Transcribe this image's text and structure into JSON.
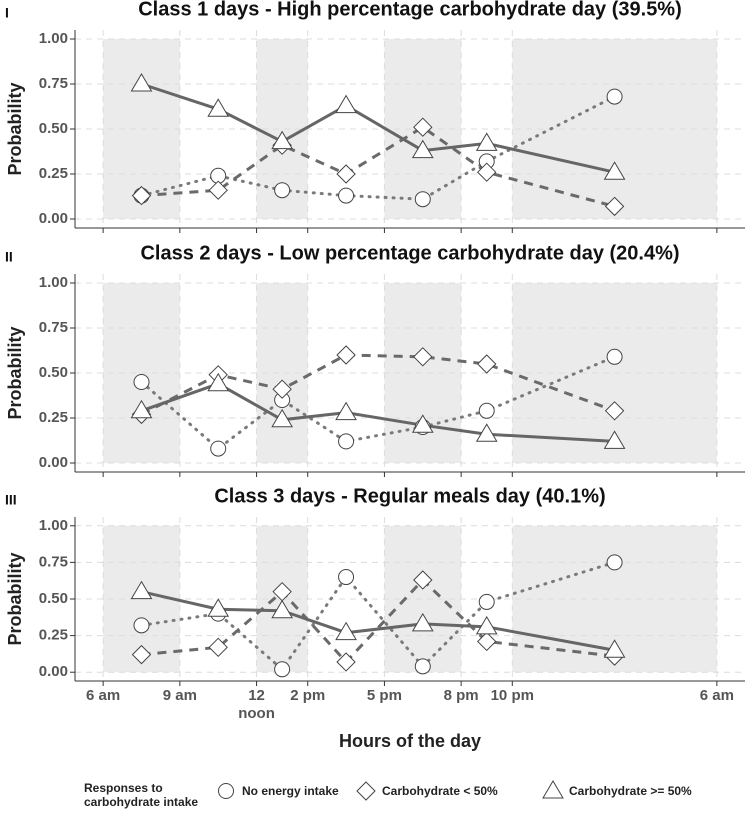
{
  "chart_data": [
    {
      "type": "line",
      "panel_label": "I",
      "title": "Class 1 days - High percentage carbohydrate day (39.5%)",
      "y_label": "Probability",
      "x": [
        7.5,
        10.5,
        13,
        15.5,
        18.5,
        21,
        26
      ],
      "series": [
        {
          "name": "No energy intake",
          "marker": "circle",
          "dash": "dotted",
          "color": "#7a7a7a",
          "values": [
            0.13,
            0.24,
            0.16,
            0.13,
            0.11,
            0.32,
            0.68
          ]
        },
        {
          "name": "Carbohydrate < 50%",
          "marker": "diamond",
          "dash": "dashed",
          "color": "#6a6a6a",
          "values": [
            0.13,
            0.16,
            0.41,
            0.25,
            0.51,
            0.26,
            0.07
          ]
        },
        {
          "name": "Carbohydrate >= 50%",
          "marker": "triangle",
          "dash": "solid",
          "color": "#666666",
          "values": [
            0.75,
            0.61,
            0.43,
            0.63,
            0.38,
            0.42,
            0.26
          ]
        }
      ],
      "shaded": [
        [
          6,
          9
        ],
        [
          12,
          14
        ],
        [
          17,
          20
        ],
        [
          22,
          30
        ]
      ],
      "xlim": [
        4.9,
        31.1
      ],
      "ylim": [
        -0.05,
        1.05
      ],
      "yticks": [
        {
          "value": 0,
          "label": "0.00"
        },
        {
          "value": 0.25,
          "label": "0.25"
        },
        {
          "value": 0.5,
          "label": "0.50"
        },
        {
          "value": 0.75,
          "label": "0.75"
        },
        {
          "value": 1,
          "label": "1.00"
        }
      ],
      "grid": true
    },
    {
      "type": "line",
      "panel_label": "II",
      "title": "Class 2 days - Low percentage carbohydrate day (20.4%)",
      "y_label": "Probability",
      "x": [
        7.5,
        10.5,
        13,
        15.5,
        18.5,
        21,
        26
      ],
      "series": [
        {
          "name": "No energy intake",
          "marker": "circle",
          "dash": "dotted",
          "color": "#7a7a7a",
          "values": [
            0.45,
            0.08,
            0.35,
            0.12,
            0.2,
            0.29,
            0.59
          ]
        },
        {
          "name": "Carbohydrate < 50%",
          "marker": "diamond",
          "dash": "dashed",
          "color": "#6a6a6a",
          "values": [
            0.27,
            0.49,
            0.41,
            0.6,
            0.59,
            0.55,
            0.29
          ]
        },
        {
          "name": "Carbohydrate >= 50%",
          "marker": "triangle",
          "dash": "solid",
          "color": "#666666",
          "values": [
            0.29,
            0.44,
            0.24,
            0.28,
            0.21,
            0.16,
            0.12
          ]
        }
      ],
      "shaded": [
        [
          6,
          9
        ],
        [
          12,
          14
        ],
        [
          17,
          20
        ],
        [
          22,
          30
        ]
      ],
      "xlim": [
        4.9,
        31.1
      ],
      "ylim": [
        -0.05,
        1.05
      ],
      "yticks": [
        {
          "value": 0,
          "label": "0.00"
        },
        {
          "value": 0.25,
          "label": "0.25"
        },
        {
          "value": 0.5,
          "label": "0.50"
        },
        {
          "value": 0.75,
          "label": "0.75"
        },
        {
          "value": 1,
          "label": "1.00"
        }
      ],
      "grid": true
    },
    {
      "type": "line",
      "panel_label": "III",
      "title": "Class 3 days - Regular meals day (40.1%)",
      "y_label": "Probability",
      "x": [
        7.5,
        10.5,
        13,
        15.5,
        18.5,
        21,
        26
      ],
      "series": [
        {
          "name": "No energy intake",
          "marker": "circle",
          "dash": "dotted",
          "color": "#7a7a7a",
          "values": [
            0.32,
            0.4,
            0.02,
            0.65,
            0.04,
            0.48,
            0.75
          ]
        },
        {
          "name": "Carbohydrate < 50%",
          "marker": "diamond",
          "dash": "dashed",
          "color": "#6a6a6a",
          "values": [
            0.12,
            0.17,
            0.55,
            0.07,
            0.63,
            0.21,
            0.11
          ]
        },
        {
          "name": "Carbohydrate >= 50%",
          "marker": "triangle",
          "dash": "solid",
          "color": "#666666",
          "values": [
            0.55,
            0.43,
            0.42,
            0.27,
            0.33,
            0.31,
            0.15
          ]
        }
      ],
      "shaded": [
        [
          6,
          9
        ],
        [
          12,
          14
        ],
        [
          17,
          20
        ],
        [
          22,
          30
        ]
      ],
      "xlim": [
        4.9,
        31.1
      ],
      "ylim": [
        -0.06,
        1.06
      ],
      "yticks": [
        {
          "value": 0,
          "label": "0.00"
        },
        {
          "value": 0.25,
          "label": "0.25"
        },
        {
          "value": 0.5,
          "label": "0.50"
        },
        {
          "value": 0.75,
          "label": "0.75"
        },
        {
          "value": 1,
          "label": "1.00"
        }
      ],
      "grid": true,
      "xticks": [
        {
          "value": 6,
          "label": "6 am"
        },
        {
          "value": 9,
          "label": "9 am"
        },
        {
          "value": 12,
          "label": "12 noon"
        },
        {
          "value": 14,
          "label": "2 pm"
        },
        {
          "value": 17,
          "label": "5 pm"
        },
        {
          "value": 20,
          "label": "8 pm"
        },
        {
          "value": 22,
          "label": "10 pm"
        },
        {
          "value": 30,
          "label": "6 am"
        }
      ],
      "x_label": "Hours of the day"
    }
  ],
  "legend_title": [
    "Responses to",
    "carbohydrate intake"
  ]
}
